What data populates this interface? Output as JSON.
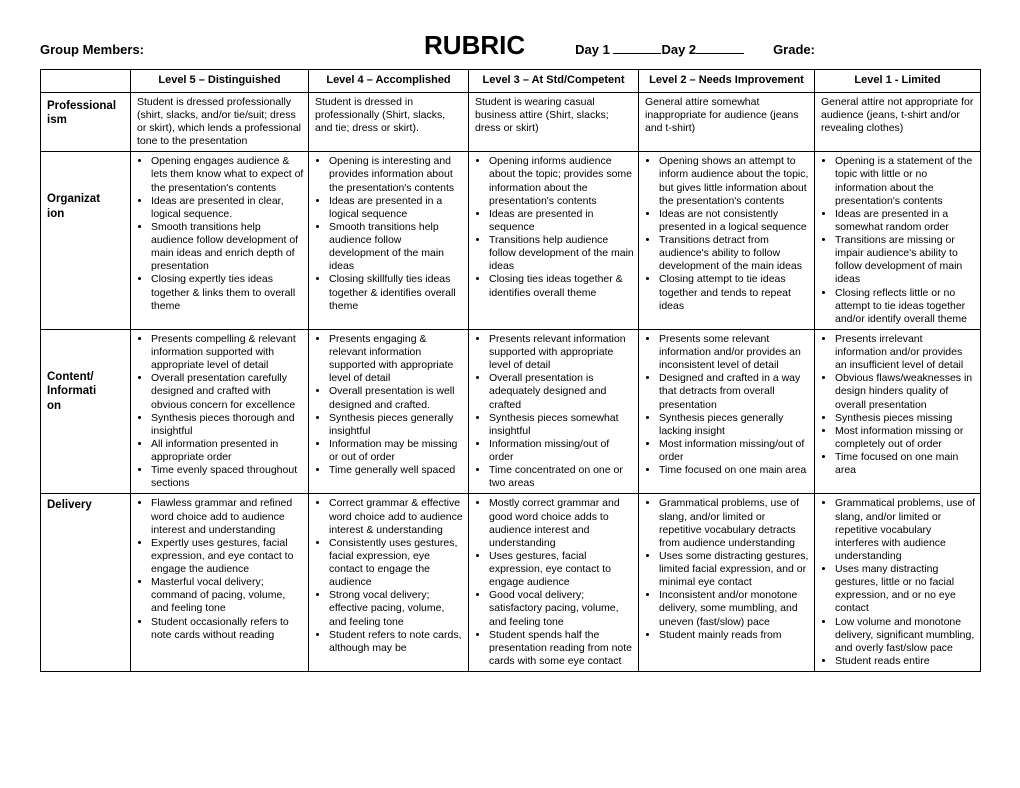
{
  "header": {
    "groupMembers": "Group Members:",
    "title": "RUBRIC",
    "day1": "Day 1",
    "day2": "Day 2",
    "grade": "Grade:"
  },
  "columns": [
    "Level 5 – Distinguished",
    "Level 4 – Accomplished",
    "Level 3 – At Std/Competent",
    "Level 2 – Needs Improvement",
    "Level 1 - Limited"
  ],
  "rows": [
    {
      "name": "Professionalism",
      "cells": [
        "Student is dressed professionally (shirt, slacks, and/or tie/suit; dress or skirt), which lends a professional tone to the presentation",
        "Student is dressed in professionally (Shirt, slacks, and tie; dress or skirt).",
        "Student is wearing casual business attire (Shirt, slacks; dress or skirt)",
        "General attire somewhat inappropriate for audience (jeans and t-shirt)",
        "General attire not appropriate for audience (jeans, t-shirt and/or revealing clothes)"
      ]
    },
    {
      "name": "Organization",
      "cells": [
        "<ul><li>Opening engages audience & lets them know what to expect  of the presentation's contents</li><li>Ideas are presented in clear, logical sequence.</li><li>Smooth transitions help audience follow development of main ideas and enrich depth of presentation</li><li>Closing expertly ties ideas together & links them to overall theme</li></ul>",
        "<ul><li>Opening is interesting and provides information about the presentation's contents</li><li>Ideas are presented in a logical sequence</li><li>Smooth transitions help audience follow development of the main ideas</li><li>Closing skillfully ties ideas together & identifies overall theme</li></ul>",
        "<ul><li>Opening informs audience about the topic; provides some information about the presentation's contents</li><li>Ideas are presented in sequence</li><li>Transitions help audience follow development of the main ideas</li><li>Closing ties ideas together & identifies overall theme</li></ul>",
        "<ul><li>Opening shows an attempt to inform audience about the topic, but gives little information about the presentation's contents</li><li>Ideas are not consistently presented in a logical sequence</li><li>Transitions detract from audience's ability to follow development of the main ideas</li><li>Closing attempt to tie ideas together and tends to repeat ideas</li></ul>",
        "<ul><li>Opening is a statement of the topic with little or no information about the presentation's contents</li><li>Ideas are presented in a somewhat random order</li><li>Transitions are missing or impair audience's ability to follow development of  main ideas</li><li>Closing reflects little or no attempt to tie ideas together and/or identify overall theme</li></ul>"
      ]
    },
    {
      "name": "Content/ Information",
      "cells": [
        "<ul><li>Presents compelling & relevant information supported with appropriate level of detail</li><li>Overall presentation carefully designed and crafted with obvious concern for excellence</li><li>Synthesis pieces thorough and insightful</li><li>All information presented in appropriate order</li><li>Time evenly spaced throughout sections</li></ul>",
        "<ul><li>Presents engaging & relevant information supported with appropriate level of detail</li><li>Overall presentation is well designed and crafted.</li><li>Synthesis pieces generally insightful</li><li>Information may be missing or out of order</li><li>Time generally well spaced</li></ul>",
        "<ul><li>Presents relevant information supported with appropriate level of detail</li><li>Overall presentation is adequately designed and crafted</li><li>Synthesis pieces somewhat insightful</li><li>Information missing/out of order</li><li>Time concentrated on one or two areas</li></ul>",
        "<ul><li>Presents some relevant information and/or provides an inconsistent level of detail</li><li>Designed and crafted in a way that detracts from overall presentation</li><li>Synthesis pieces generally lacking insight</li><li>Most information missing/out of order</li><li>Time focused on one main area</li></ul>",
        "<ul><li>Presents irrelevant information and/or provides an insufficient level of detail</li><li>Obvious flaws/weaknesses in design hinders quality of overall presentation</li><li>Synthesis pieces missing</li><li>Most information missing or completely out of order</li><li>Time focused on one main area</li></ul>"
      ]
    },
    {
      "name": "Delivery",
      "cells": [
        "<ul><li>Flawless grammar and refined word choice add to audience interest and understanding</li><li>Expertly uses gestures, facial expression, and eye contact to engage the audience</li><li>Masterful vocal delivery; command of pacing, volume, and feeling tone</li><li>Student occasionally refers to note cards without reading</li></ul>",
        "<ul><li>Correct grammar & effective word choice add to audience interest & understanding</li><li>Consistently uses gestures, facial expression, eye contact to engage the audience</li><li>Strong vocal delivery; effective pacing, volume, and feeling tone</li><li>Student  refers to note cards, although may be</li></ul>",
        "<ul><li>Mostly correct grammar and good word choice adds to audience interest and understanding</li><li>Uses gestures, facial expression, eye contact to engage audience</li><li>Good vocal delivery; satisfactory pacing, volume, and feeling tone</li><li>Student spends half the presentation reading from note cards with some eye contact</li></ul>",
        "<ul><li>Grammatical problems, use of slang, and/or limited or repetitive vocabulary detracts from audience understanding</li><li>Uses some distracting gestures, limited facial expression, and or minimal eye contact</li><li>Inconsistent and/or monotone delivery, some mumbling, and uneven (fast/slow) pace</li><li>Student mainly reads from</li></ul>",
        "<ul><li>Grammatical problems, use of slang, and/or limited or repetitive vocabulary interferes with audience understanding</li><li>Uses many distracting gestures, little or no facial expression, and or no eye contact</li><li>Low volume and monotone delivery, significant mumbling, and overly fast/slow pace</li><li>Student reads entire</li></ul>"
      ]
    }
  ]
}
